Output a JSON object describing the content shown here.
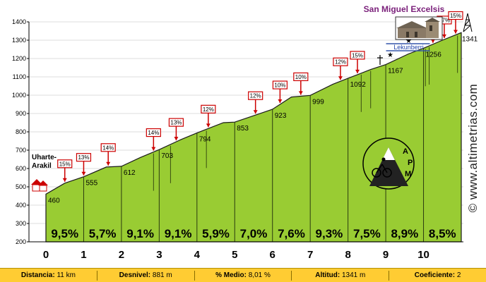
{
  "chart_data": {
    "type": "area",
    "title": "San Miguel Excelsis",
    "ylim": [
      200,
      1400
    ],
    "xlim": [
      0,
      11
    ],
    "y_ticks": [
      200,
      300,
      400,
      500,
      600,
      700,
      800,
      900,
      1000,
      1100,
      1200,
      1300,
      1400
    ],
    "x_ticks": [
      0,
      1,
      2,
      3,
      4,
      5,
      6,
      7,
      8,
      9,
      10
    ],
    "profile": [
      {
        "x": 0,
        "y": 460
      },
      {
        "x": 0.5,
        "y": 520
      },
      {
        "x": 1,
        "y": 555
      },
      {
        "x": 1.6,
        "y": 608
      },
      {
        "x": 2,
        "y": 612
      },
      {
        "x": 2.5,
        "y": 660
      },
      {
        "x": 3,
        "y": 703
      },
      {
        "x": 3.6,
        "y": 760
      },
      {
        "x": 4,
        "y": 794
      },
      {
        "x": 4.7,
        "y": 850
      },
      {
        "x": 5,
        "y": 853
      },
      {
        "x": 5.6,
        "y": 895
      },
      {
        "x": 6,
        "y": 923
      },
      {
        "x": 6.5,
        "y": 990
      },
      {
        "x": 7,
        "y": 999
      },
      {
        "x": 7.6,
        "y": 1060
      },
      {
        "x": 8,
        "y": 1092
      },
      {
        "x": 8.6,
        "y": 1140
      },
      {
        "x": 9,
        "y": 1167
      },
      {
        "x": 9.6,
        "y": 1225
      },
      {
        "x": 10,
        "y": 1256
      },
      {
        "x": 10.5,
        "y": 1300
      },
      {
        "x": 11,
        "y": 1341
      }
    ],
    "point_labels": [
      {
        "x": 0,
        "y": 460,
        "text": "460"
      },
      {
        "x": 1,
        "y": 555,
        "text": "555"
      },
      {
        "x": 2,
        "y": 612,
        "text": "612"
      },
      {
        "x": 3,
        "y": 703,
        "text": "703"
      },
      {
        "x": 4,
        "y": 794,
        "text": "794"
      },
      {
        "x": 5,
        "y": 853,
        "text": "853"
      },
      {
        "x": 6,
        "y": 923,
        "text": "923"
      },
      {
        "x": 7,
        "y": 999,
        "text": "999"
      },
      {
        "x": 8,
        "y": 1092,
        "text": "1092"
      },
      {
        "x": 9,
        "y": 1167,
        "text": "1167"
      },
      {
        "x": 10,
        "y": 1256,
        "text": "1256"
      },
      {
        "x": 11,
        "y": 1341,
        "text": "1341"
      }
    ],
    "segment_gradients": [
      "9,5%",
      "5,7%",
      "9,1%",
      "9,1%",
      "5,9%",
      "7,0%",
      "7,6%",
      "9,3%",
      "7,5%",
      "8,9%",
      "8,5%"
    ],
    "flag_gradients": [
      {
        "x": 0.5,
        "label": "15%"
      },
      {
        "x": 1.0,
        "label": "13%"
      },
      {
        "x": 1.65,
        "label": "14%"
      },
      {
        "x": 2.85,
        "label": "14%"
      },
      {
        "x": 3.45,
        "label": "13%"
      },
      {
        "x": 4.3,
        "label": "12%"
      },
      {
        "x": 5.55,
        "label": "12%"
      },
      {
        "x": 6.2,
        "label": "10%"
      },
      {
        "x": 6.75,
        "label": "10%"
      },
      {
        "x": 7.8,
        "label": "12%"
      },
      {
        "x": 8.25,
        "label": "15%"
      },
      {
        "x": 10.25,
        "label": "14%"
      },
      {
        "x": 10.55,
        "label": "17%"
      },
      {
        "x": 10.85,
        "label": "15%"
      }
    ],
    "places": [
      {
        "x": 0,
        "label_lines": [
          "Uharte-",
          "Arakil"
        ]
      },
      {
        "x": 9.7,
        "label_lines": [
          "Lekunberri"
        ]
      }
    ],
    "colors": {
      "fill": "#99cc33",
      "fill_dark": "#6f9a1c",
      "flag": "#cc0000",
      "grid": "#dddddd"
    }
  },
  "watermark": "© www.altimetrias.com",
  "logo_letters": "APM",
  "footer": {
    "distance": {
      "label": "Distancia:",
      "value": "11 km"
    },
    "elevation": {
      "label": "Desnivel:",
      "value": "881 m"
    },
    "avg": {
      "label": "% Medio:",
      "value": "8,01 %"
    },
    "altitude": {
      "label": "Altitud:",
      "value": "1341 m"
    },
    "coef": {
      "label": "Coeficiente:",
      "value": "2"
    }
  }
}
